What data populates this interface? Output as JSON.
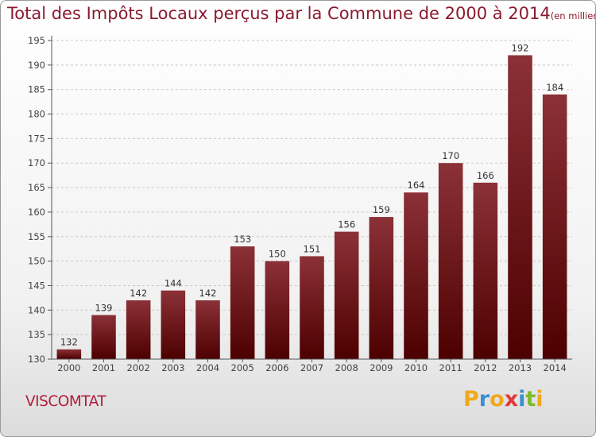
{
  "chart_data": {
    "type": "bar",
    "title": "Total des Impôts Locaux perçus par la Commune de 2000 à 2014",
    "unit_note": "(en milliers d'€)",
    "categories": [
      "2000",
      "2001",
      "2002",
      "2003",
      "2004",
      "2005",
      "2006",
      "2007",
      "2008",
      "2009",
      "2010",
      "2011",
      "2012",
      "2013",
      "2014"
    ],
    "values": [
      132,
      139,
      142,
      144,
      142,
      153,
      150,
      151,
      156,
      159,
      164,
      170,
      166,
      192,
      184
    ],
    "ylim": [
      130,
      195
    ],
    "yticks": [
      130,
      135,
      140,
      145,
      150,
      155,
      160,
      165,
      170,
      175,
      180,
      185,
      190,
      195
    ],
    "xlabel": "",
    "ylabel": "",
    "grid": true,
    "bar_color_top": "#8b3137",
    "bar_color_bottom": "#4d0000"
  },
  "footer": {
    "commune": "VISCOMTAT",
    "logo_letters": [
      "P",
      "r",
      "o",
      "x",
      "i",
      "t",
      "i"
    ],
    "logo_colors": [
      "#f0a81e",
      "#3c8ecf",
      "#f0a81e",
      "#e03a3a",
      "#3c8ecf",
      "#7cbb2a",
      "#f0a81e"
    ]
  }
}
